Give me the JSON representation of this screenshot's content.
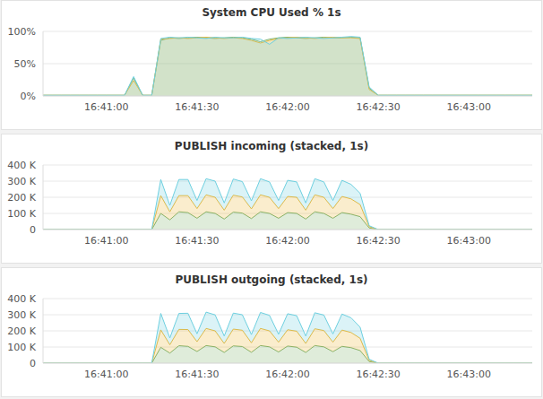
{
  "chart_data": [
    {
      "type": "area",
      "title": "System CPU Used % 1s",
      "stacked": false,
      "grid": true,
      "categories": [
        null,
        null,
        null,
        null,
        null,
        null,
        null,
        "16:41:00",
        null,
        null,
        null,
        null,
        null,
        null,
        null,
        null,
        null,
        "16:41:30",
        null,
        null,
        null,
        null,
        null,
        null,
        null,
        null,
        null,
        "16:42:00",
        null,
        null,
        null,
        null,
        null,
        null,
        null,
        null,
        null,
        "16:42:30",
        null,
        null,
        null,
        null,
        null,
        null,
        null,
        null,
        null,
        "16:43:00",
        null,
        null,
        null,
        null,
        null,
        null,
        null
      ],
      "ylim": [
        0,
        100
      ],
      "yticks": [
        {
          "value": 0,
          "label": "0%"
        },
        {
          "value": 50,
          "label": "50%"
        },
        {
          "value": 100,
          "label": "100%"
        }
      ],
      "series": [
        {
          "color": "#7EB26D",
          "values": [
            1,
            1,
            1,
            1,
            1,
            1,
            1,
            1,
            1,
            1,
            28,
            1,
            1,
            86,
            90,
            89,
            90,
            91,
            90,
            89,
            90,
            91,
            90,
            88,
            84,
            88,
            90,
            91,
            90,
            89,
            90,
            91,
            90,
            90,
            91,
            90,
            12,
            1,
            1,
            1,
            1,
            1,
            1,
            1,
            1,
            1,
            1,
            1,
            1,
            1,
            1,
            1,
            1,
            1,
            1
          ]
        },
        {
          "color": "#EAB839",
          "values": [
            1,
            1,
            1,
            1,
            1,
            1,
            1,
            1,
            1,
            1,
            24,
            1,
            1,
            88,
            89,
            90,
            89,
            90,
            91,
            90,
            89,
            90,
            89,
            86,
            82,
            86,
            89,
            90,
            91,
            90,
            89,
            90,
            91,
            90,
            90,
            89,
            10,
            1,
            1,
            1,
            1,
            1,
            1,
            1,
            1,
            1,
            1,
            1,
            1,
            1,
            1,
            1,
            1,
            1,
            1
          ]
        },
        {
          "color": "#6ED0E0",
          "values": [
            1,
            1,
            1,
            1,
            1,
            1,
            1,
            1,
            1,
            1,
            30,
            1,
            1,
            89,
            91,
            90,
            91,
            90,
            89,
            91,
            90,
            90,
            91,
            89,
            88,
            80,
            90,
            89,
            90,
            91,
            90,
            89,
            90,
            91,
            92,
            91,
            14,
            1,
            1,
            1,
            1,
            1,
            1,
            1,
            1,
            1,
            1,
            1,
            1,
            1,
            1,
            1,
            1,
            1,
            1
          ]
        }
      ]
    },
    {
      "type": "area",
      "title": "PUBLISH incoming (stacked, 1s)",
      "stacked": true,
      "grid": true,
      "categories": [
        null,
        null,
        null,
        null,
        null,
        null,
        null,
        "16:41:00",
        null,
        null,
        null,
        null,
        null,
        null,
        null,
        null,
        null,
        "16:41:30",
        null,
        null,
        null,
        null,
        null,
        null,
        null,
        null,
        null,
        "16:42:00",
        null,
        null,
        null,
        null,
        null,
        null,
        null,
        null,
        null,
        "16:42:30",
        null,
        null,
        null,
        null,
        null,
        null,
        null,
        null,
        null,
        "16:43:00",
        null,
        null,
        null,
        null,
        null,
        null,
        null
      ],
      "ylim": [
        0,
        400000
      ],
      "yticks": [
        0,
        {
          "value": 100000,
          "label": "100 K"
        },
        {
          "value": 200000,
          "label": "200 K"
        },
        {
          "value": 300000,
          "label": "300 K"
        },
        {
          "value": 400000,
          "label": "400 K"
        }
      ],
      "series": [
        {
          "color": "#7EB26D",
          "values": [
            0,
            0,
            0,
            0,
            0,
            0,
            0,
            0,
            0,
            0,
            0,
            0,
            0,
            100000,
            60000,
            110000,
            105000,
            70000,
            110000,
            100000,
            65000,
            108000,
            102000,
            68000,
            110000,
            100000,
            70000,
            105000,
            100000,
            65000,
            110000,
            100000,
            70000,
            105000,
            95000,
            80000,
            10000,
            0,
            0,
            0,
            0,
            0,
            0,
            0,
            0,
            0,
            0,
            0,
            0,
            0,
            0,
            0,
            0,
            0,
            0
          ]
        },
        {
          "color": "#EAB839",
          "values": [
            0,
            0,
            0,
            0,
            0,
            0,
            0,
            0,
            0,
            0,
            0,
            0,
            0,
            110000,
            50000,
            100000,
            105000,
            60000,
            105000,
            100000,
            55000,
            105000,
            100000,
            60000,
            105000,
            100000,
            60000,
            100000,
            100000,
            55000,
            105000,
            100000,
            60000,
            100000,
            95000,
            75000,
            8000,
            0,
            0,
            0,
            0,
            0,
            0,
            0,
            0,
            0,
            0,
            0,
            0,
            0,
            0,
            0,
            0,
            0,
            0
          ]
        },
        {
          "color": "#6ED0E0",
          "values": [
            0,
            0,
            0,
            0,
            0,
            0,
            0,
            0,
            0,
            0,
            0,
            0,
            0,
            100000,
            40000,
            100000,
            100000,
            50000,
            100000,
            100000,
            45000,
            100000,
            95000,
            50000,
            100000,
            95000,
            50000,
            100000,
            95000,
            45000,
            100000,
            95000,
            50000,
            100000,
            90000,
            70000,
            6000,
            0,
            0,
            0,
            0,
            0,
            0,
            0,
            0,
            0,
            0,
            0,
            0,
            0,
            0,
            0,
            0,
            0,
            0
          ]
        }
      ]
    },
    {
      "type": "area",
      "title": "PUBLISH outgoing (stacked, 1s)",
      "stacked": true,
      "grid": true,
      "categories": [
        null,
        null,
        null,
        null,
        null,
        null,
        null,
        "16:41:00",
        null,
        null,
        null,
        null,
        null,
        null,
        null,
        null,
        null,
        "16:41:30",
        null,
        null,
        null,
        null,
        null,
        null,
        null,
        null,
        null,
        "16:42:00",
        null,
        null,
        null,
        null,
        null,
        null,
        null,
        null,
        null,
        "16:42:30",
        null,
        null,
        null,
        null,
        null,
        null,
        null,
        null,
        null,
        "16:43:00",
        null,
        null,
        null,
        null,
        null,
        null,
        null
      ],
      "ylim": [
        0,
        400000
      ],
      "yticks": [
        0,
        {
          "value": 100000,
          "label": "100 K"
        },
        {
          "value": 200000,
          "label": "200 K"
        },
        {
          "value": 300000,
          "label": "300 K"
        },
        {
          "value": 400000,
          "label": "400 K"
        }
      ],
      "series": [
        {
          "color": "#7EB26D",
          "values": [
            0,
            0,
            0,
            0,
            0,
            0,
            0,
            0,
            0,
            0,
            0,
            0,
            0,
            98000,
            62000,
            108000,
            104000,
            72000,
            109000,
            101000,
            66000,
            107000,
            103000,
            67000,
            109000,
            101000,
            69000,
            106000,
            99000,
            66000,
            109000,
            101000,
            71000,
            104000,
            96000,
            78000,
            10000,
            0,
            0,
            0,
            0,
            0,
            0,
            0,
            0,
            0,
            0,
            0,
            0,
            0,
            0,
            0,
            0,
            0,
            0
          ]
        },
        {
          "color": "#EAB839",
          "values": [
            0,
            0,
            0,
            0,
            0,
            0,
            0,
            0,
            0,
            0,
            0,
            0,
            0,
            108000,
            52000,
            101000,
            104000,
            61000,
            106000,
            99000,
            56000,
            104000,
            101000,
            59000,
            106000,
            99000,
            61000,
            101000,
            99000,
            56000,
            104000,
            101000,
            59000,
            101000,
            94000,
            76000,
            8000,
            0,
            0,
            0,
            0,
            0,
            0,
            0,
            0,
            0,
            0,
            0,
            0,
            0,
            0,
            0,
            0,
            0,
            0
          ]
        },
        {
          "color": "#6ED0E0",
          "values": [
            0,
            0,
            0,
            0,
            0,
            0,
            0,
            0,
            0,
            0,
            0,
            0,
            0,
            102000,
            42000,
            99000,
            101000,
            49000,
            101000,
            99000,
            46000,
            99000,
            96000,
            51000,
            99000,
            96000,
            49000,
            99000,
            96000,
            46000,
            99000,
            96000,
            51000,
            99000,
            91000,
            69000,
            6000,
            0,
            0,
            0,
            0,
            0,
            0,
            0,
            0,
            0,
            0,
            0,
            0,
            0,
            0,
            0,
            0,
            0,
            0
          ]
        }
      ]
    }
  ]
}
